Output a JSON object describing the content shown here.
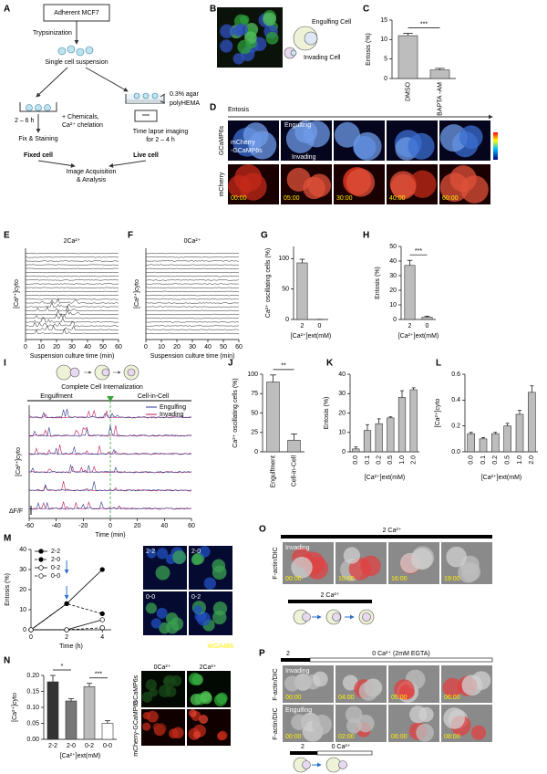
{
  "panels": [
    "A",
    "B",
    "C",
    "D",
    "E",
    "F",
    "G",
    "H",
    "I",
    "J",
    "K",
    "L",
    "M",
    "N",
    "O",
    "P"
  ],
  "workflow": {
    "start": "Adherent MCF7",
    "step1": "Trypsinization",
    "suspension": "Single cell suspension",
    "time_fixed": "2 – 6 h",
    "treatment": [
      "+ Chemicals,",
      "Ca²⁺ chelation"
    ],
    "agar": "0.3% agar",
    "polyhema": "polyHEMA",
    "fix": "Fix & Staining",
    "live_imaging": [
      "Time lapse imaging",
      "for 2 – 4 h"
    ],
    "fixed": "Fixed cell",
    "live": "Live cell",
    "analysis": [
      "Image Acquisition",
      "& Analysis"
    ]
  },
  "panel_b": {
    "engulfing": "Engulfing Cell",
    "invading": "Invading Cell"
  },
  "panel_d": {
    "title": "Entosis",
    "rows": [
      "GCaMP6s",
      "mCherry"
    ],
    "engulfing": "Engulfing",
    "invading": "Invading",
    "probe": [
      "mCherry",
      "-GCaMP6s"
    ],
    "times": [
      "00:00",
      "05:00",
      "30:00",
      "40:00",
      "60:00"
    ]
  },
  "panel_i": {
    "event": "Complete Cell Internalization",
    "phases": [
      "Engulfment",
      "Cell-in-Cell"
    ]
  },
  "panel_m_images": {
    "labels": [
      "2-2",
      "2-0",
      "0-0",
      "0-2"
    ],
    "stain": "WGA488"
  },
  "panel_n_images": {
    "columns": [
      "0Ca²⁺",
      "2Ca²⁺"
    ],
    "rows": [
      "GCaMP6s",
      "mCherry-GCaMP6s"
    ]
  },
  "panel_o": {
    "condition": "2 Ca²⁺",
    "channel": "F-actin/DIC",
    "cell": "Invading",
    "times": [
      "00:00",
      "10:00",
      "16:00",
      "19:00"
    ],
    "schema": "2 Ca²⁺"
  },
  "panel_p": {
    "bar": [
      "2",
      "0 Ca²⁺ (2mM EGTA)"
    ],
    "channel": "F-actin/DIC",
    "rows": [
      {
        "cell": "Invading",
        "times": [
          "00:00",
          "04:00",
          "05:00",
          "06:00"
        ]
      },
      {
        "cell": "Engulfing",
        "times": [
          "00:00",
          "02:00",
          "06:00",
          "08:00"
        ]
      }
    ],
    "schema": [
      "2",
      "0 Ca²⁺"
    ]
  },
  "chart_data": [
    {
      "type": "bar",
      "ylabel": "Entosis (%)",
      "categories": [
        "DMSO",
        "BAPTA -AM"
      ],
      "values": [
        11,
        2.2
      ],
      "errors": [
        0.6,
        0.4
      ],
      "color": "#bdbdbd",
      "ylim": [
        0,
        15
      ],
      "yticks": [
        0,
        5,
        10,
        15
      ],
      "annotations": [
        "***"
      ]
    },
    {
      "type": "trace",
      "title": "2Ca²⁺",
      "ylabel": "[Ca²⁺]cyto",
      "xlabel": "Suspension culture time (min)",
      "xlim": [
        0,
        60
      ],
      "xticks": [
        0,
        10,
        20,
        30,
        40,
        50,
        60
      ]
    },
    {
      "type": "trace",
      "title": "0Ca²⁺",
      "ylabel": "[Ca²⁺]cyto",
      "xlabel": "Suspension culture time (min)",
      "xlim": [
        0,
        60
      ],
      "xticks": [
        0,
        10,
        20,
        30,
        40,
        50,
        60
      ]
    },
    {
      "type": "bar",
      "ylabel": "Ca²⁺ oscillating cells (%)",
      "xlabel": "[Ca²⁺]ext(mM)",
      "categories": [
        "2",
        "0"
      ],
      "values": [
        93,
        0
      ],
      "errors": [
        6,
        0
      ],
      "color": "#bdbdbd",
      "ylim": [
        0,
        120
      ],
      "yticks": [
        0,
        50,
        100
      ]
    },
    {
      "type": "bar",
      "ylabel": "Entosis (%)",
      "xlabel": "[Ca²⁺]ext(mM)",
      "categories": [
        "2",
        "0"
      ],
      "values": [
        37,
        1.5
      ],
      "errors": [
        3.5,
        0.8
      ],
      "color": "#bdbdbd",
      "ylim": [
        0,
        50
      ],
      "yticks": [
        0,
        10,
        20,
        30,
        40,
        50
      ],
      "annotations": [
        "***"
      ]
    },
    {
      "type": "trace",
      "ylabel": "[Ca²⁺]cyto",
      "xlabel": "Time (min)",
      "scale_label": "ΔF/F",
      "xlim": [
        -60,
        60
      ],
      "xticks": [
        -60,
        -40,
        -20,
        0,
        20,
        40,
        60
      ],
      "series": [
        {
          "name": "Engulfing",
          "color": "#2b3a8c"
        },
        {
          "name": "Invading",
          "color": "#c2185b"
        }
      ]
    },
    {
      "type": "bar",
      "ylabel": "Ca²⁺ oscillating cells (%)",
      "categories": [
        "Engulfment",
        "Cell-in-Cell"
      ],
      "values": [
        90,
        15
      ],
      "errors": [
        9,
        8
      ],
      "color": "#bdbdbd",
      "ylim": [
        0,
        100
      ],
      "yticks": [
        0,
        25,
        50,
        75,
        100
      ],
      "annotations": [
        "**"
      ]
    },
    {
      "type": "bar",
      "ylabel": "Entosis (%)",
      "xlabel": "[Ca²⁺]ext(mM)",
      "categories": [
        "0.0",
        "0.1",
        "0.2",
        "0.5",
        "1.0",
        "2.0"
      ],
      "values": [
        1.5,
        11,
        14.5,
        17.5,
        28,
        32
      ],
      "errors": [
        1,
        3,
        2.5,
        0.5,
        3.5,
        1
      ],
      "color": "#bdbdbd",
      "ylim": [
        0,
        40
      ],
      "yticks": [
        0,
        10,
        20,
        30,
        40
      ]
    },
    {
      "type": "bar",
      "ylabel": "[Ca²⁺]cyto",
      "xlabel": "[Ca²⁺]ext(mM)",
      "categories": [
        "0.0",
        "0.1",
        "0.2",
        "0.5",
        "1.0",
        "2.0"
      ],
      "values": [
        0.14,
        0.1,
        0.14,
        0.2,
        0.29,
        0.46
      ],
      "errors": [
        0.01,
        0.01,
        0.01,
        0.02,
        0.03,
        0.05
      ],
      "color": "#bdbdbd",
      "ylim": [
        0,
        0.6
      ],
      "yticks": [
        {
          "value": 0,
          "label": "0.0"
        },
        0.2,
        0.4,
        0.6
      ]
    },
    {
      "type": "line",
      "ylabel": "Entosis (%)",
      "xlabel": "Time (h)",
      "x": [
        0,
        2,
        4
      ],
      "xlim": [
        0,
        4.5
      ],
      "xticks": [
        0,
        2,
        4
      ],
      "ylim": [
        0,
        40
      ],
      "yticks": [
        0,
        10,
        20,
        30,
        40
      ],
      "series": [
        {
          "name": "2-2",
          "color": "#000000",
          "fill": "#000000",
          "dash": false,
          "values": [
            0,
            13,
            30
          ]
        },
        {
          "name": "2-0",
          "color": "#000000",
          "fill": "#000000",
          "dash": true,
          "values": [
            0,
            13,
            8
          ]
        },
        {
          "name": "0-2",
          "color": "#000000",
          "fill": "#ffffff",
          "dash": false,
          "values": [
            0,
            0,
            5
          ]
        },
        {
          "name": "0-0",
          "color": "#000000",
          "fill": "#ffffff",
          "dash": true,
          "values": [
            0,
            0,
            1
          ]
        }
      ]
    },
    {
      "type": "bar",
      "ylabel": "[Ca²⁺]cyto",
      "xlabel": "[Ca²⁺]ext(mM)",
      "categories": [
        "2-2",
        "2-0",
        "0-2",
        "0-0"
      ],
      "values": [
        0.18,
        0.12,
        0.165,
        0.05
      ],
      "errors": [
        0.02,
        0.007,
        0.01,
        0.008
      ],
      "colors": [
        "#333333",
        "#777777",
        "#bbbbbb",
        "#ffffff"
      ],
      "ylim": [
        0,
        0.2
      ],
      "yticks": [
        {
          "value": 0,
          "label": "0.00"
        },
        0.05,
        {
          "value": 0.1,
          "label": "0.10"
        },
        0.15,
        {
          "value": 0.2,
          "label": "0.20"
        }
      ],
      "annotations": [
        "*",
        "***"
      ]
    }
  ]
}
